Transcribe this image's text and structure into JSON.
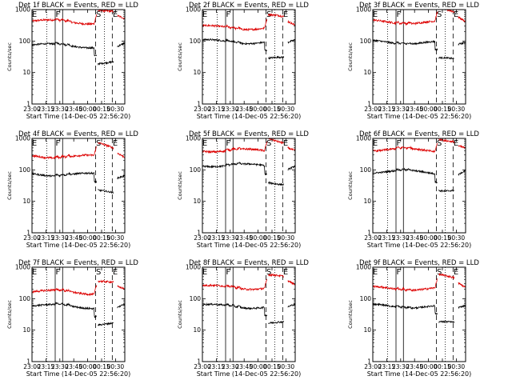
{
  "chart_data": {
    "type": "line",
    "panel_count": 9,
    "grid": false,
    "y_scale": "log",
    "ylim": [
      1,
      1000
    ],
    "y_ticks": [
      1,
      10,
      100,
      1000
    ],
    "xlim_minutes_after_2300": [
      0,
      100
    ],
    "x_ticks": [
      "23:00",
      "23:15",
      "23:30",
      "23:45",
      "00:00",
      "00:15",
      "00:30"
    ],
    "xlabel": "Start Time (14-Dec-05 22:56:20)",
    "ylabel": "Counts/sec",
    "colors": {
      "events": "#000000",
      "lld": "#dd0000",
      "frame": "#000000"
    },
    "markers": [
      {
        "label": "E",
        "time": "22:59:30",
        "style": "none"
      },
      {
        "label": "F",
        "time": "23:25:00",
        "style": "solid"
      },
      {
        "label": "",
        "time": "23:16:00",
        "style": "dotted"
      },
      {
        "label": "",
        "time": "23:33:00",
        "style": "solid"
      },
      {
        "label": "S",
        "time": "00:08:30",
        "style": "dashed"
      },
      {
        "label": "",
        "time": "00:18:00",
        "style": "dotted"
      },
      {
        "label": "E",
        "time": "00:26:30",
        "style": "dashed"
      }
    ],
    "panels": [
      {
        "title": "Det 1f BLACK = Events, RED = LLD",
        "events_level": 75,
        "lld_level": 430
      },
      {
        "title": "Det 2f BLACK = Events, RED = LLD",
        "events_level": 100,
        "lld_level": 280
      },
      {
        "title": "Det 3f BLACK = Events, RED = LLD",
        "events_level": 95,
        "lld_level": 420
      },
      {
        "title": "Det 4f BLACK = Events, RED = LLD",
        "events_level": 75,
        "lld_level": 280
      },
      {
        "title": "Det 5f BLACK = Events, RED = LLD",
        "events_level": 145,
        "lld_level": 430
      },
      {
        "title": "Det 6f BLACK = Events, RED = LLD",
        "events_level": 90,
        "lld_level": 450
      },
      {
        "title": "Det 7f BLACK = Events, RED = LLD",
        "events_level": 60,
        "lld_level": 170
      },
      {
        "title": "Det 8f BLACK = Events, RED = LLD",
        "events_level": 60,
        "lld_level": 240
      },
      {
        "title": "Det 9f BLACK = Events, RED = LLD",
        "events_level": 60,
        "lld_level": 220
      }
    ]
  }
}
